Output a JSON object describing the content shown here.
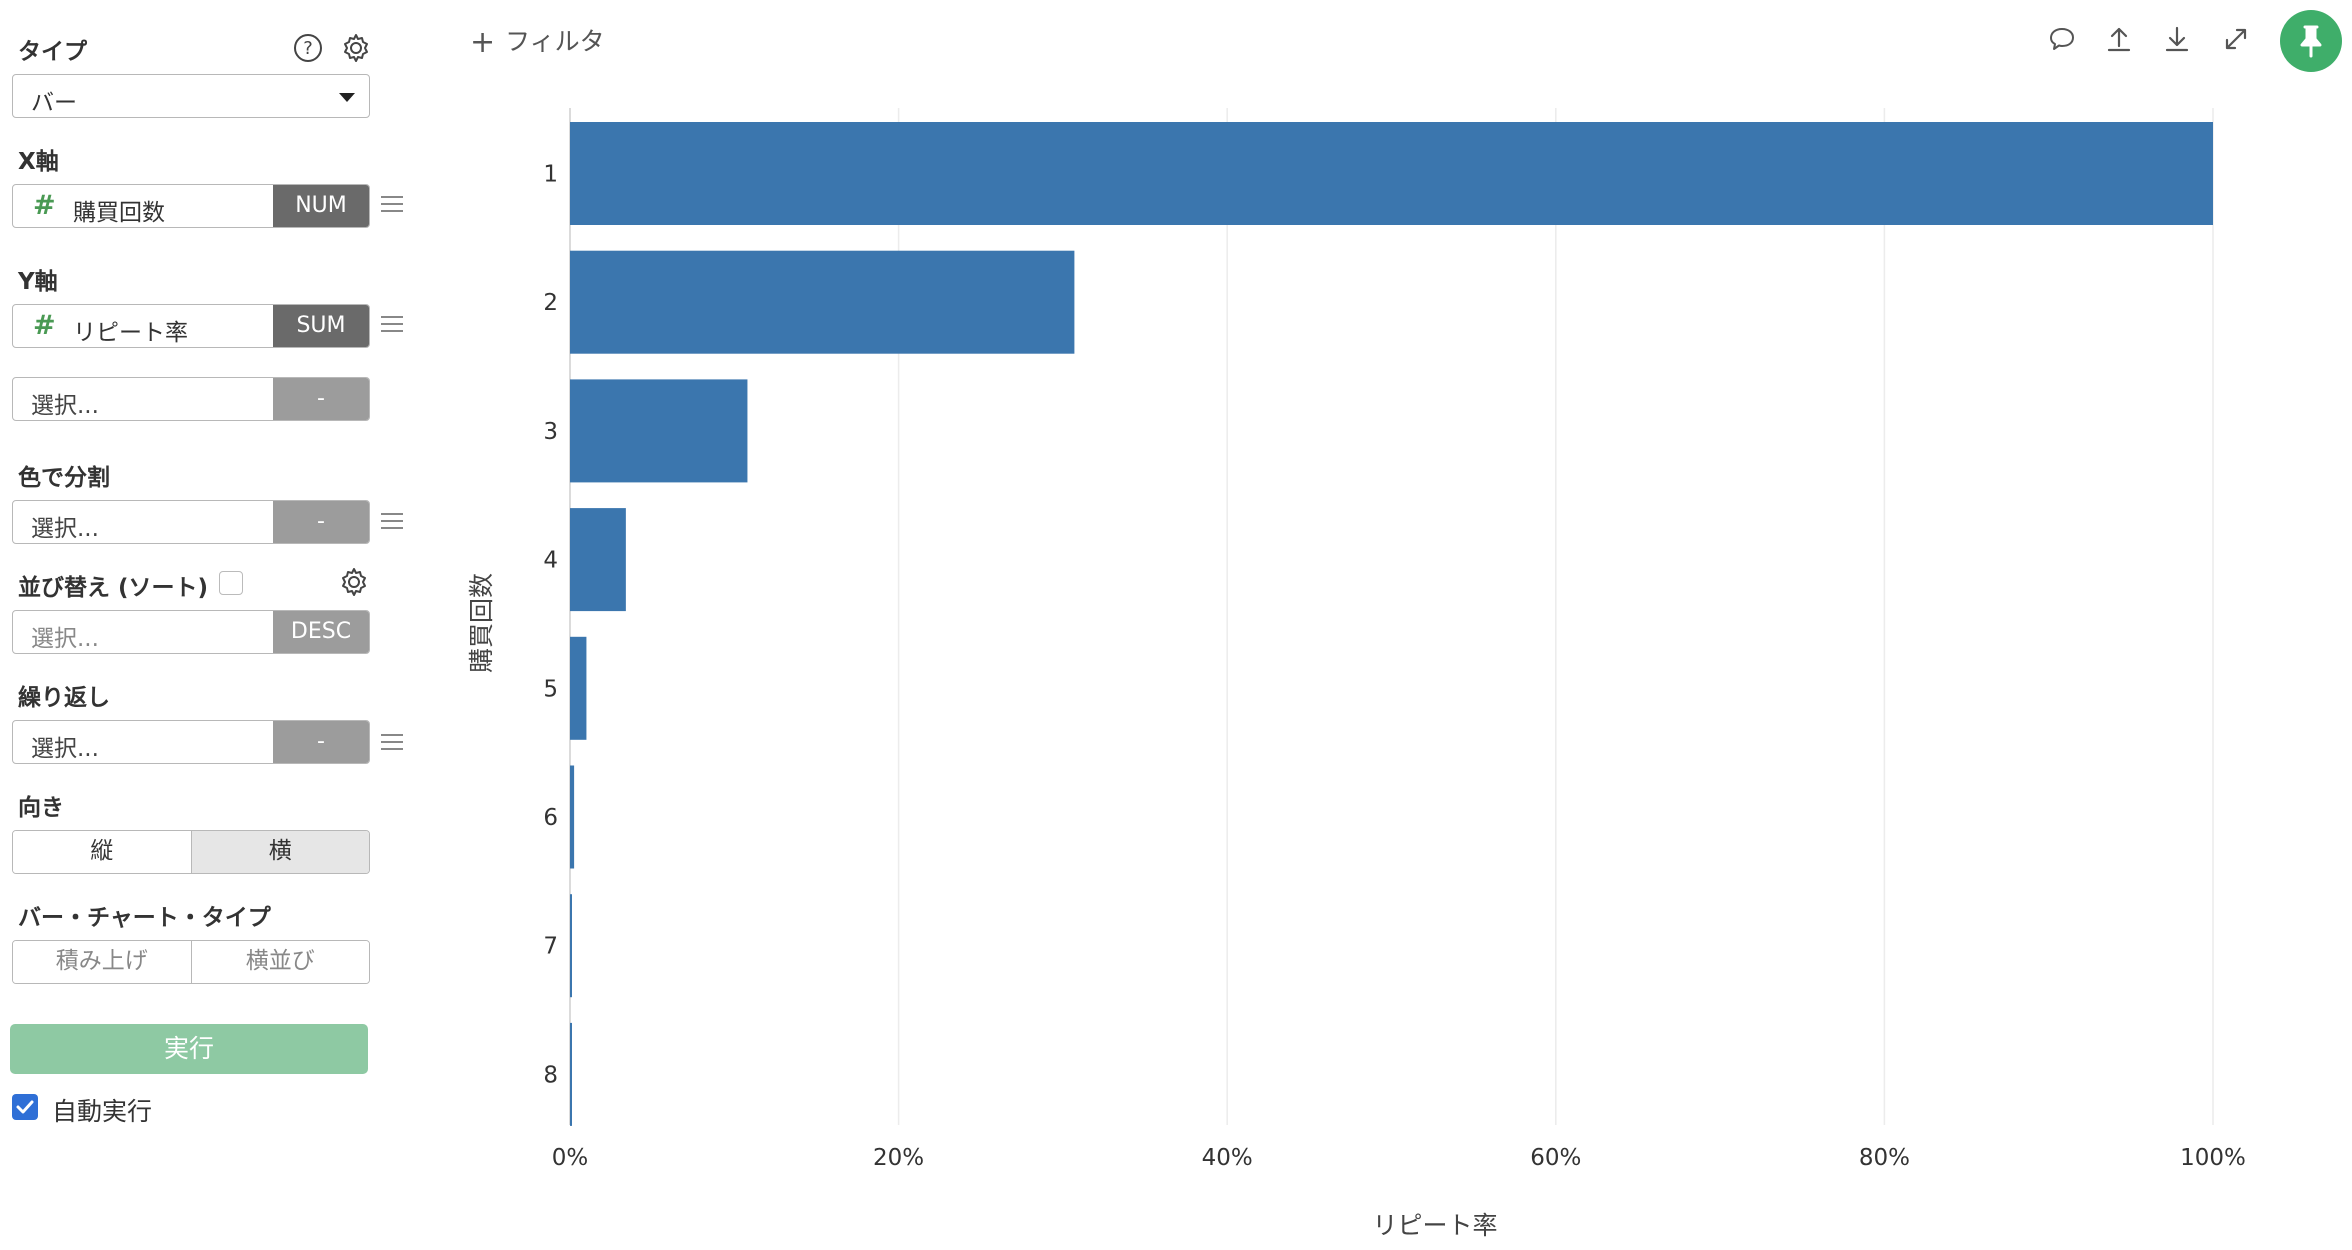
{
  "sidebar": {
    "type_label": "タイプ",
    "type_value": "バー",
    "x_axis": {
      "label": "X軸",
      "field": "購買回数",
      "agg": "NUM"
    },
    "y_axis": {
      "label": "Y軸",
      "field": "リピート率",
      "agg": "SUM"
    },
    "y_extra": {
      "placeholder": "選択...",
      "agg": "-"
    },
    "color_split": {
      "label": "色で分割",
      "placeholder": "選択...",
      "agg": "-"
    },
    "sort": {
      "label": "並び替え (ソート)",
      "placeholder": "選択...",
      "order": "DESC"
    },
    "repeat": {
      "label": "繰り返し",
      "placeholder": "選択...",
      "agg": "-"
    },
    "orientation": {
      "label": "向き",
      "options": [
        "縦",
        "横"
      ],
      "selected": "横"
    },
    "bar_type": {
      "label": "バー・チャート・タイプ",
      "options": [
        "積み上げ",
        "横並び"
      ]
    },
    "run_label": "実行",
    "auto_run_label": "自動実行",
    "auto_run_checked": true
  },
  "toolbar": {
    "filter_label": "フィルタ",
    "icons": [
      "comment-icon",
      "upload-icon",
      "download-icon",
      "expand-icon",
      "pin-icon"
    ]
  },
  "colors": {
    "bar": "#3b76ae",
    "accent_green": "#3fae6a",
    "run_button": "#8ec9a3"
  },
  "chart_data": {
    "type": "bar",
    "orientation": "horizontal",
    "categories": [
      "1",
      "2",
      "3",
      "4",
      "5",
      "6",
      "7",
      "8"
    ],
    "values": [
      100,
      30.7,
      10.8,
      3.4,
      1.0,
      0.25,
      0.1,
      0.05
    ],
    "xlabel": "リピート率",
    "ylabel": "購買回数",
    "xlim": [
      0,
      100
    ],
    "xticks": [
      "0%",
      "20%",
      "40%",
      "60%",
      "80%",
      "100%"
    ],
    "grid": true
  }
}
